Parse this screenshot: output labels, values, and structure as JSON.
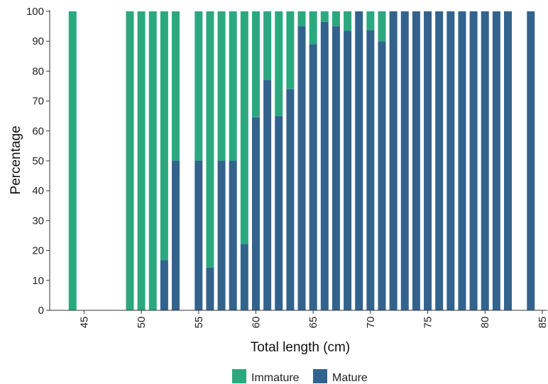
{
  "chart_data": {
    "type": "bar",
    "stacked": true,
    "xlabel": "Total length (cm)",
    "ylabel": "Percentage",
    "xlim": [
      42,
      85.5
    ],
    "ylim": [
      0,
      100
    ],
    "x_ticks": [
      45,
      50,
      55,
      60,
      65,
      70,
      75,
      80,
      85
    ],
    "y_ticks": [
      0,
      10,
      20,
      30,
      40,
      50,
      60,
      70,
      80,
      90,
      100
    ],
    "grid": false,
    "legend_position": "bottom",
    "colors": {
      "Immature": "#2ca87f",
      "Mature": "#33638d"
    },
    "x": [
      44,
      49,
      50,
      51,
      52,
      53,
      55,
      56,
      57,
      58,
      59,
      60,
      61,
      62,
      63,
      64,
      65,
      66,
      67,
      68,
      69,
      70,
      71,
      72,
      73,
      74,
      75,
      76,
      77,
      78,
      79,
      80,
      81,
      82,
      84
    ],
    "series": [
      {
        "name": "Immature",
        "values": [
          100,
          100,
          100,
          100,
          83.3,
          50,
          50,
          85.7,
          50,
          50,
          77.8,
          35.5,
          23,
          35,
          26,
          5,
          11,
          3.5,
          5,
          6.5,
          0,
          6.3,
          10,
          0,
          0,
          0,
          0,
          0,
          0,
          0,
          0,
          0,
          0,
          0,
          0
        ]
      },
      {
        "name": "Mature",
        "values": [
          0,
          0,
          0,
          0,
          16.7,
          50,
          50,
          14.3,
          50,
          50,
          22.2,
          64.5,
          77,
          65,
          74,
          95,
          89,
          96.5,
          95,
          93.5,
          100,
          93.7,
          90,
          100,
          100,
          100,
          100,
          100,
          100,
          100,
          100,
          100,
          100,
          100,
          100
        ]
      }
    ]
  }
}
